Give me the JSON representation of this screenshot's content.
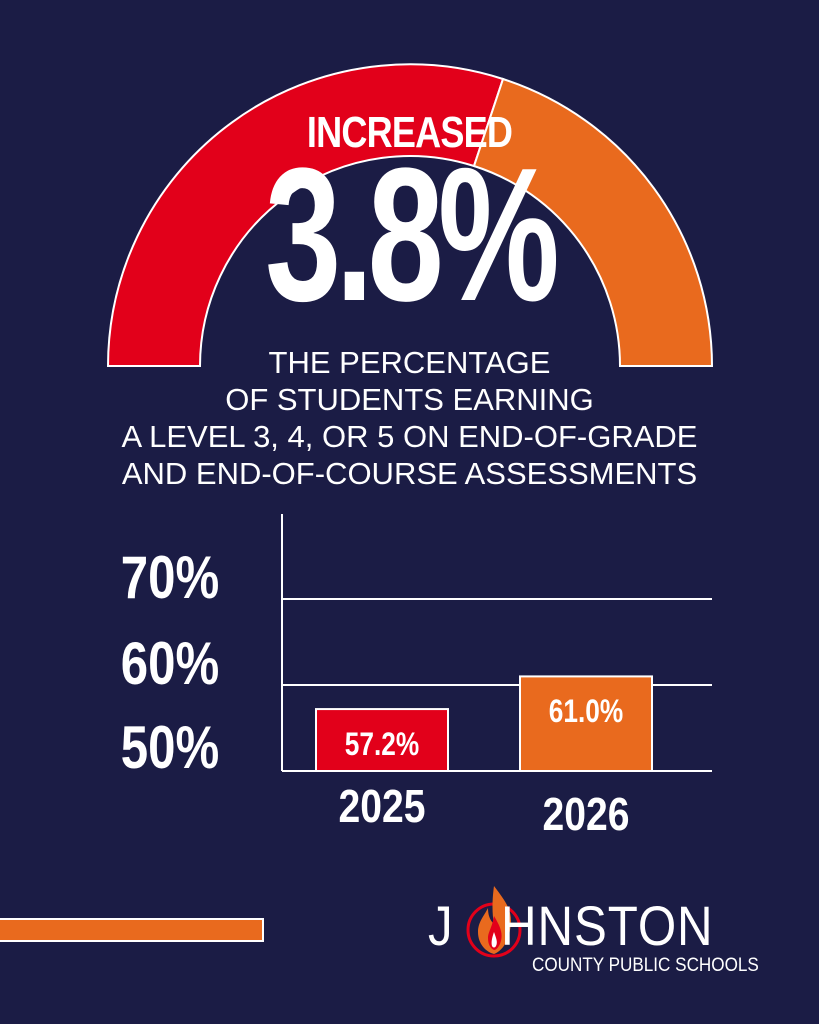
{
  "colors": {
    "background": "#1b1c45",
    "red": "#e2001a",
    "orange": "#e96a1e",
    "white": "#ffffff"
  },
  "headline": {
    "label": "INCREASED",
    "value": "3.8%"
  },
  "description": {
    "lines": [
      "THE PERCENTAGE",
      "OF STUDENTS EARNING",
      "A LEVEL 3, 4, OR 5 ON END-OF-GRADE",
      "AND END-OF-COURSE ASSESSMENTS"
    ]
  },
  "chart_data": {
    "type": "bar",
    "categories": [
      "2025",
      "2026"
    ],
    "values": [
      57.2,
      61.0
    ],
    "value_labels": [
      "57.2%",
      "61.0%"
    ],
    "bar_colors": [
      "#e2001a",
      "#e96a1e"
    ],
    "ytick_labels": [
      "70%",
      "60%",
      "50%"
    ],
    "ytick_values": [
      70,
      60,
      50
    ],
    "ylim": [
      50,
      70
    ],
    "grid": true
  },
  "logo": {
    "name_left": "J",
    "name_right": "HNSTON",
    "subtitle": "COUNTY PUBLIC SCHOOLS",
    "icon": "flame-icon"
  }
}
